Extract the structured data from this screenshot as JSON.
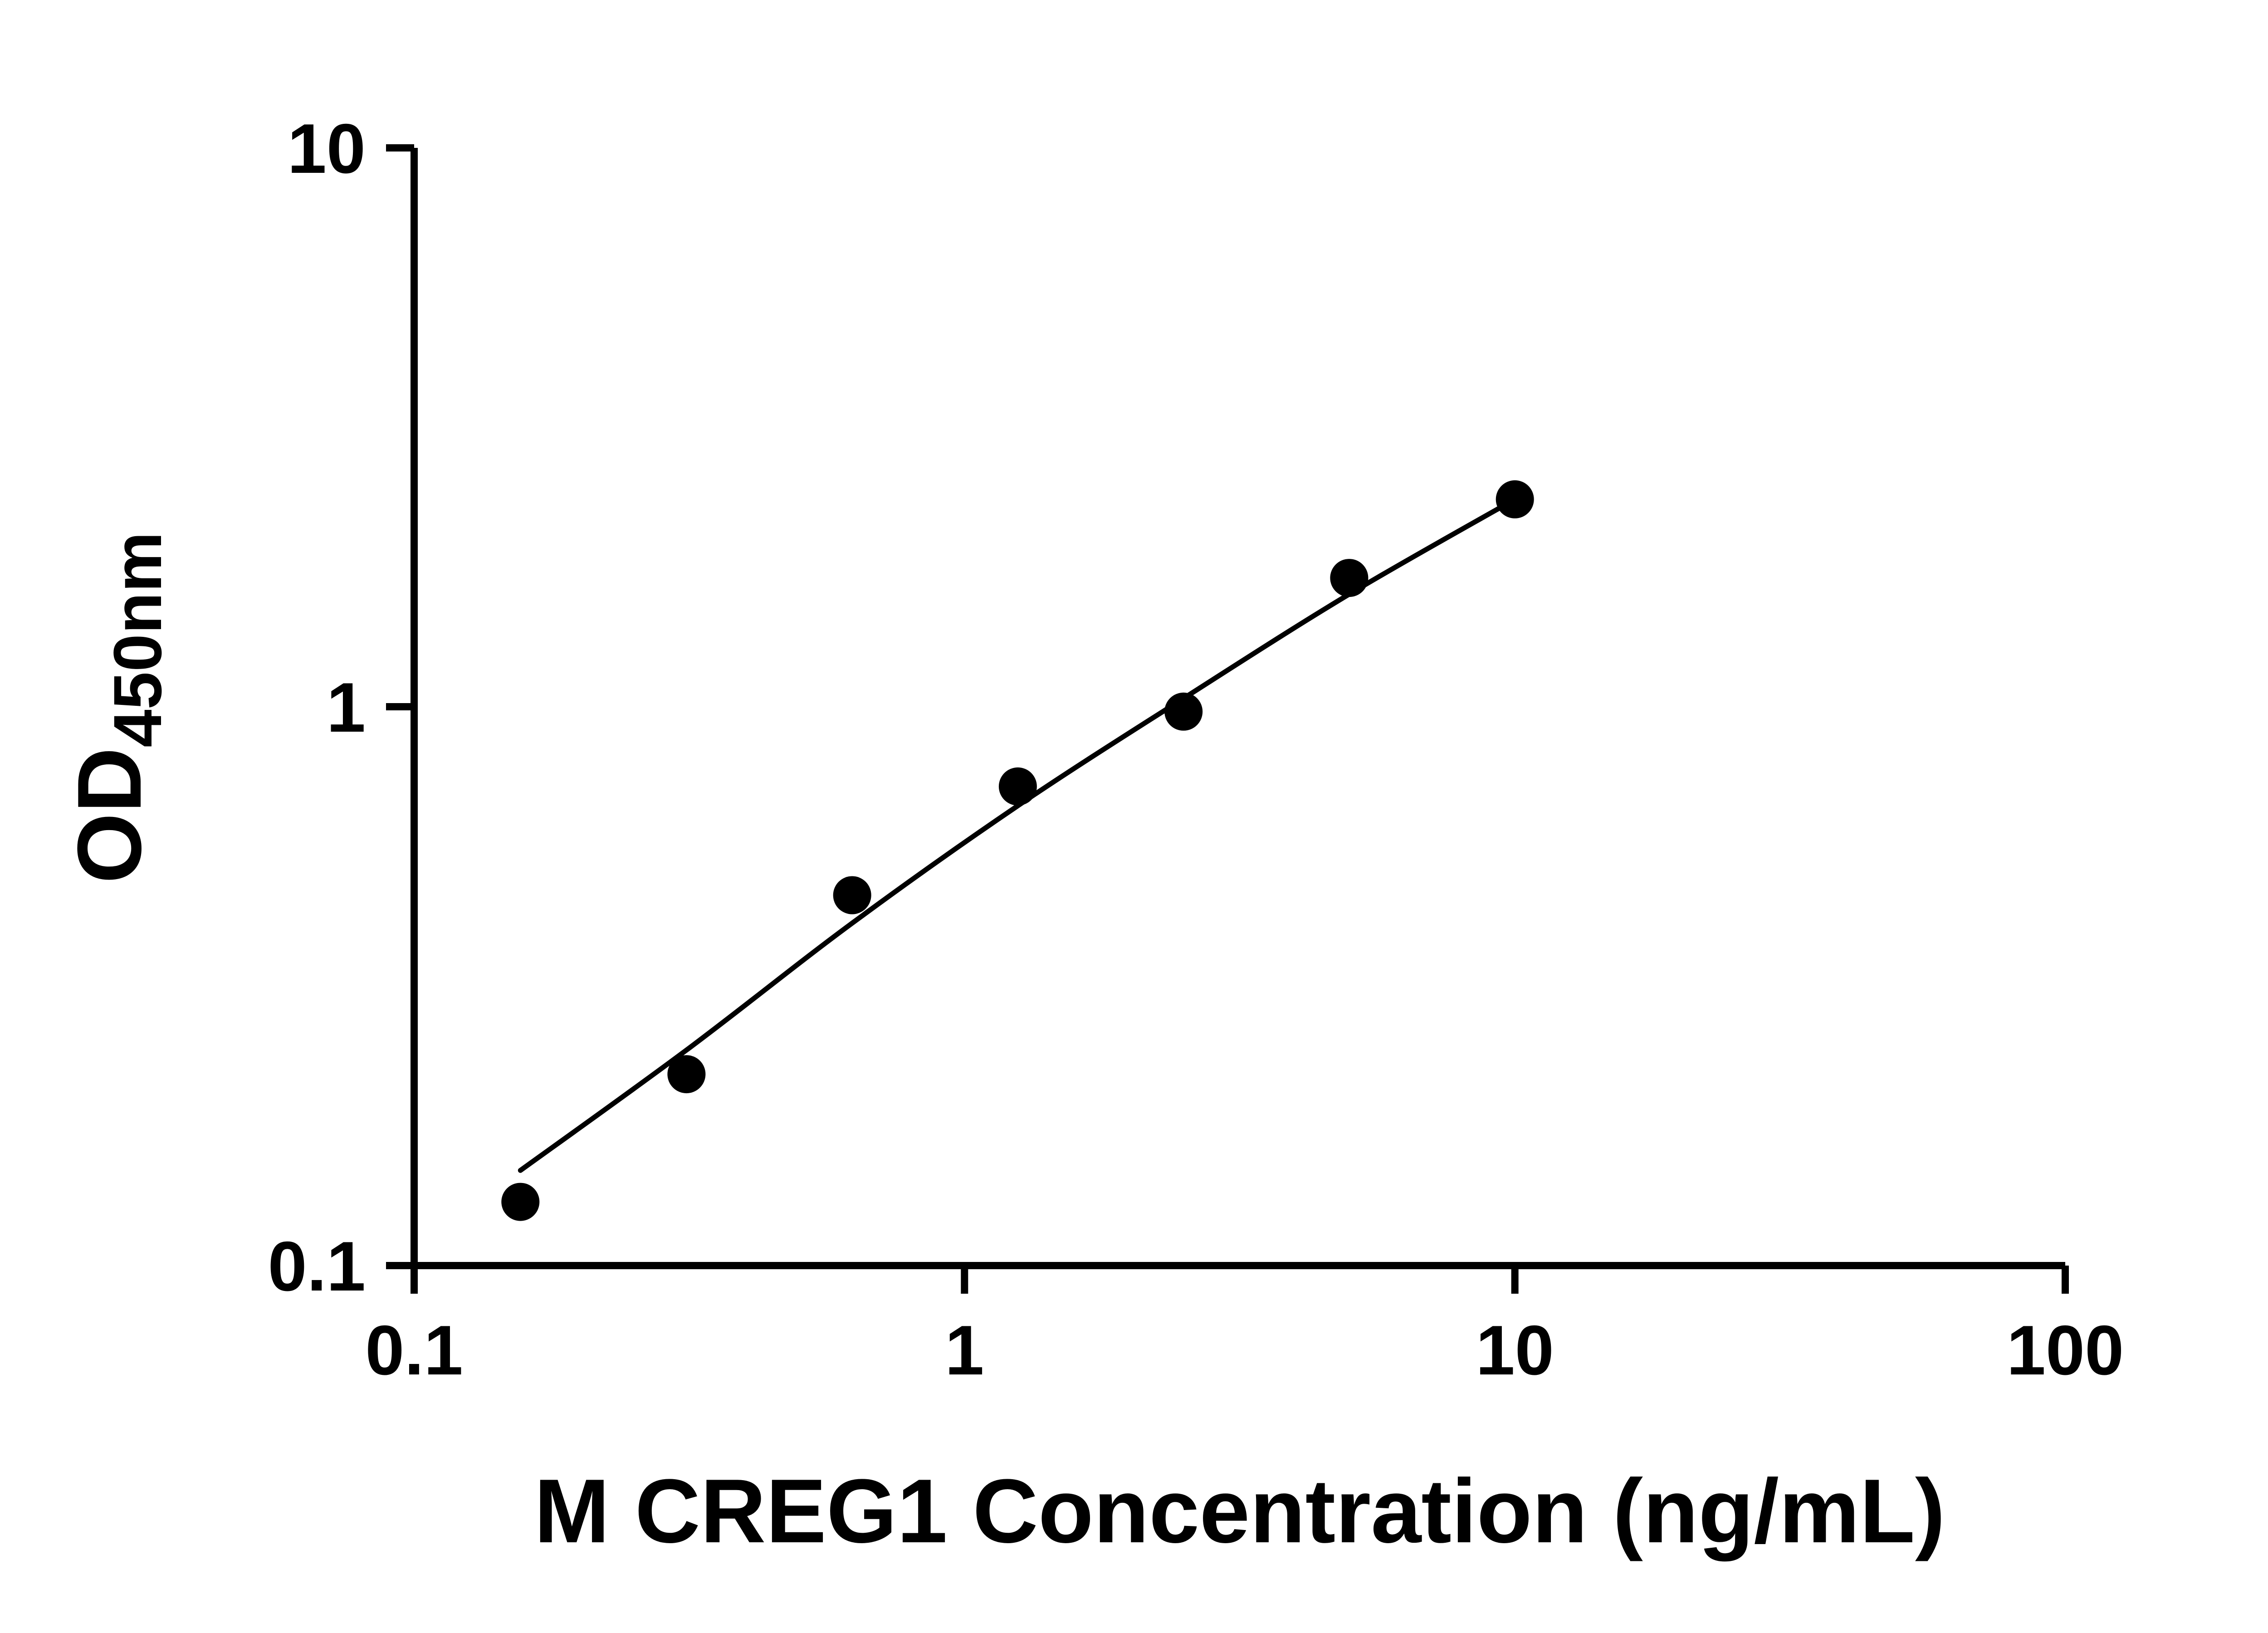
{
  "figure": {
    "background": "#ffffff",
    "axis_color": "#000000",
    "marker_color": "#000000",
    "curve_color": "#000000"
  },
  "chart_data": {
    "type": "scatter",
    "subtype": "elisa-standard-curve",
    "title": "",
    "xlabel": "M CREG1 Concentration (ng/mL)",
    "ylabel_main": "OD",
    "ylabel_sub": "450nm",
    "x_scale": "log10",
    "y_scale": "log10",
    "xlim": [
      0.1,
      100
    ],
    "ylim": [
      0.1,
      10
    ],
    "grid": false,
    "legend": false,
    "x_tick_values": [
      0.1,
      1,
      10,
      100
    ],
    "x_tick_labels": [
      "0.1",
      "1",
      "10",
      "100"
    ],
    "y_tick_values": [
      0.1,
      1,
      10
    ],
    "y_tick_labels": [
      "0.1",
      "1",
      "10"
    ],
    "series": [
      {
        "marker": "circle",
        "points": [
          {
            "x": 0.156,
            "y": 0.13
          },
          {
            "x": 0.3125,
            "y": 0.22
          },
          {
            "x": 0.625,
            "y": 0.46
          },
          {
            "x": 1.25,
            "y": 0.72
          },
          {
            "x": 2.5,
            "y": 0.98
          },
          {
            "x": 5,
            "y": 1.7
          },
          {
            "x": 10,
            "y": 2.35
          }
        ]
      }
    ],
    "fit_curve": {
      "points": [
        [
          0.156,
          0.148
        ],
        [
          0.3125,
          0.243
        ],
        [
          0.625,
          0.41
        ],
        [
          1.25,
          0.665
        ],
        [
          2.5,
          1.035
        ],
        [
          5,
          1.59
        ],
        [
          10,
          2.35
        ]
      ]
    }
  },
  "plot_style": {
    "axis_stroke_width": 16,
    "tick_length": 62,
    "curve_stroke_width": 11,
    "marker_radius": 42
  }
}
